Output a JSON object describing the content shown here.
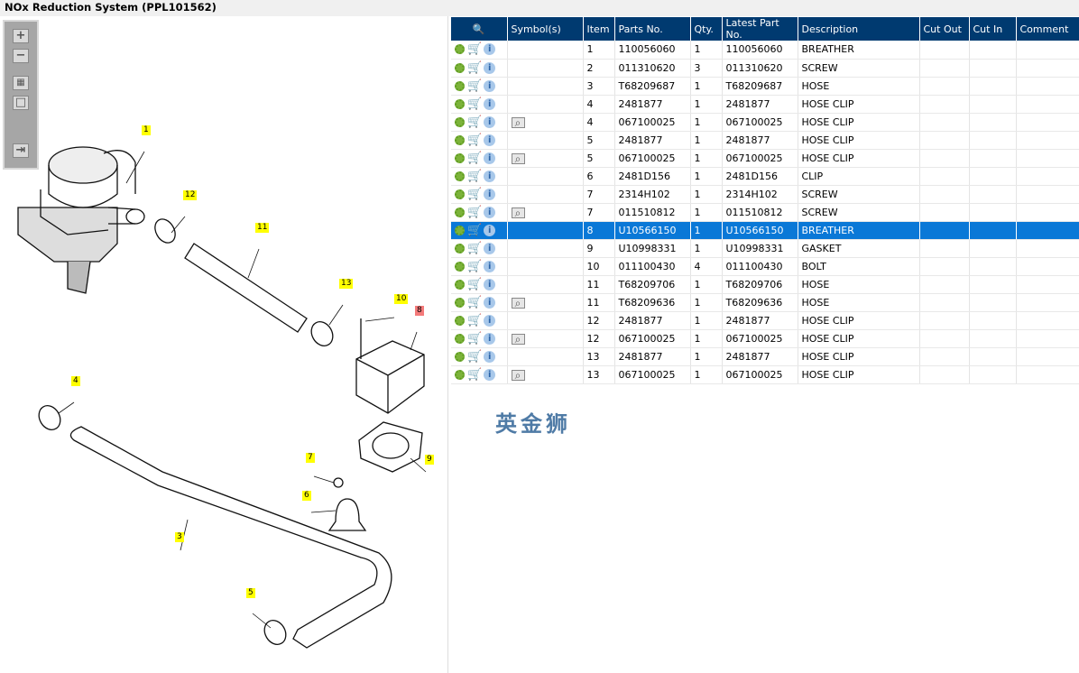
{
  "title": "NOx Reduction System (PPL101562)",
  "toolbar": {
    "zoom_in": "+",
    "zoom_out": "−",
    "fit": "▦",
    "actual": "□",
    "export": "⇥"
  },
  "callouts": [
    "1",
    "12",
    "11",
    "13",
    "10",
    "8",
    "4",
    "9",
    "7",
    "6",
    "3",
    "5"
  ],
  "table": {
    "headers": [
      "",
      "Symbol(s)",
      "Item",
      "Parts No.",
      "Qty.",
      "Latest Part No.",
      "Description",
      "Cut Out",
      "Cut In",
      "Comment"
    ],
    "rows": [
      {
        "symbol": false,
        "item": "1",
        "part": "110056060",
        "qty": "1",
        "latest": "110056060",
        "desc": "BREATHER"
      },
      {
        "symbol": false,
        "item": "2",
        "part": "011310620",
        "qty": "3",
        "latest": "011310620",
        "desc": "SCREW"
      },
      {
        "symbol": false,
        "item": "3",
        "part": "T68209687",
        "qty": "1",
        "latest": "T68209687",
        "desc": "HOSE"
      },
      {
        "symbol": false,
        "item": "4",
        "part": "2481877",
        "qty": "1",
        "latest": "2481877",
        "desc": "HOSE CLIP"
      },
      {
        "symbol": true,
        "item": "4",
        "part": "067100025",
        "qty": "1",
        "latest": "067100025",
        "desc": "HOSE CLIP"
      },
      {
        "symbol": false,
        "item": "5",
        "part": "2481877",
        "qty": "1",
        "latest": "2481877",
        "desc": "HOSE CLIP"
      },
      {
        "symbol": true,
        "item": "5",
        "part": "067100025",
        "qty": "1",
        "latest": "067100025",
        "desc": "HOSE CLIP"
      },
      {
        "symbol": false,
        "item": "6",
        "part": "2481D156",
        "qty": "1",
        "latest": "2481D156",
        "desc": "CLIP"
      },
      {
        "symbol": false,
        "item": "7",
        "part": "2314H102",
        "qty": "1",
        "latest": "2314H102",
        "desc": "SCREW"
      },
      {
        "symbol": true,
        "item": "7",
        "part": "011510812",
        "qty": "1",
        "latest": "011510812",
        "desc": "SCREW"
      },
      {
        "symbol": false,
        "item": "8",
        "part": "U10566150",
        "qty": "1",
        "latest": "U10566150",
        "desc": "BREATHER",
        "selected": true
      },
      {
        "symbol": false,
        "item": "9",
        "part": "U10998331",
        "qty": "1",
        "latest": "U10998331",
        "desc": "GASKET"
      },
      {
        "symbol": false,
        "item": "10",
        "part": "011100430",
        "qty": "4",
        "latest": "011100430",
        "desc": "BOLT"
      },
      {
        "symbol": false,
        "item": "11",
        "part": "T68209706",
        "qty": "1",
        "latest": "T68209706",
        "desc": "HOSE"
      },
      {
        "symbol": true,
        "item": "11",
        "part": "T68209636",
        "qty": "1",
        "latest": "T68209636",
        "desc": "HOSE"
      },
      {
        "symbol": false,
        "item": "12",
        "part": "2481877",
        "qty": "1",
        "latest": "2481877",
        "desc": "HOSE CLIP"
      },
      {
        "symbol": true,
        "item": "12",
        "part": "067100025",
        "qty": "1",
        "latest": "067100025",
        "desc": "HOSE CLIP"
      },
      {
        "symbol": false,
        "item": "13",
        "part": "2481877",
        "qty": "1",
        "latest": "2481877",
        "desc": "HOSE CLIP"
      },
      {
        "symbol": true,
        "item": "13",
        "part": "067100025",
        "qty": "1",
        "latest": "067100025",
        "desc": "HOSE CLIP"
      }
    ]
  },
  "watermark": "英金狮",
  "colors": {
    "header": "#003a70",
    "selected": "#0a78d7",
    "callout": "#ffff00",
    "callout_selected": "#f47a7a"
  }
}
